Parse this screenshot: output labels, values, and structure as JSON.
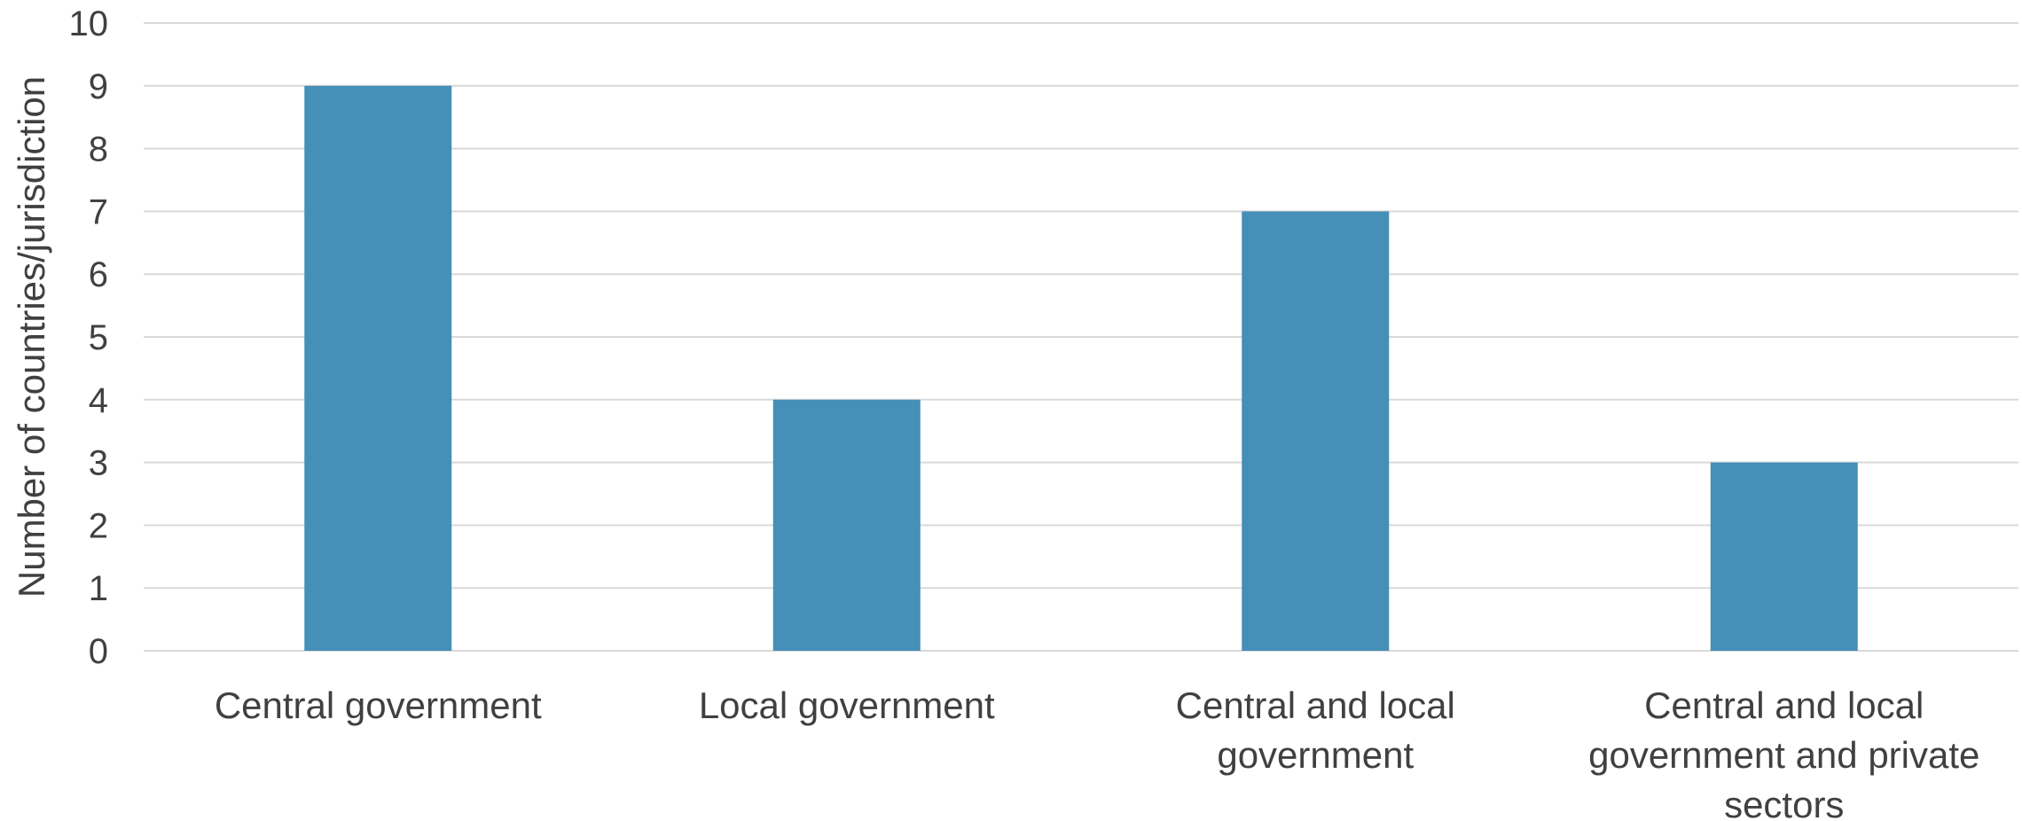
{
  "chart_data": {
    "type": "bar",
    "title": "",
    "xlabel": "",
    "ylabel": "Number of countries/jurisdiction",
    "categories": [
      [
        "Central government"
      ],
      [
        "Local government"
      ],
      [
        "Central and local",
        "government"
      ],
      [
        "Central and local",
        "government and private",
        "sectors"
      ]
    ],
    "values": [
      9,
      4,
      7,
      3
    ],
    "ylim": [
      0,
      10
    ],
    "yticks": [
      0,
      1,
      2,
      3,
      4,
      5,
      6,
      7,
      8,
      9,
      10
    ],
    "grid": true,
    "legend": "none",
    "bar_color": "#458fb8"
  }
}
